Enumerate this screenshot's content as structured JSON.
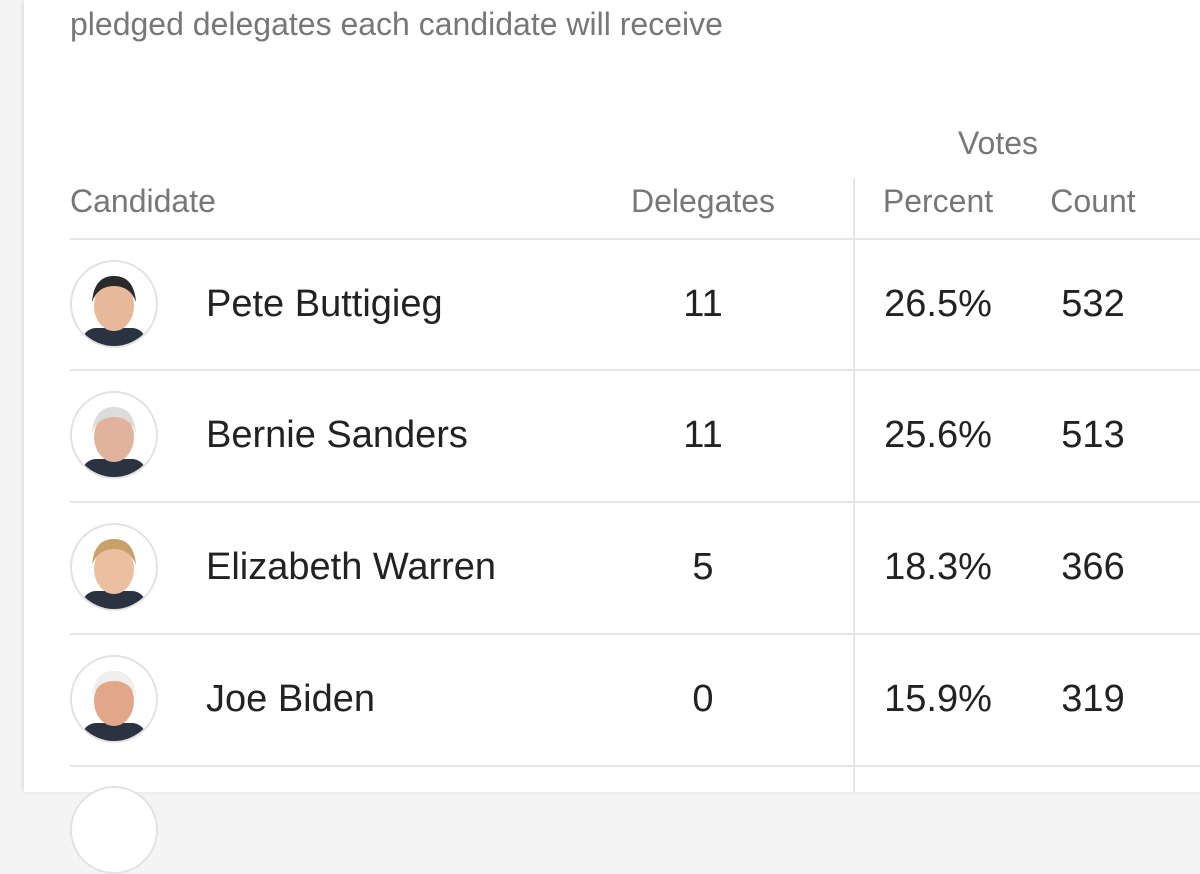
{
  "subtitle": "pledged delegates each candidate will receive",
  "table": {
    "group_header": "Votes",
    "columns": [
      "Candidate",
      "Delegates",
      "Percent",
      "Count"
    ],
    "rows": [
      [
        "Pete Buttigieg",
        "11",
        "26.5%",
        "532"
      ],
      [
        "Bernie Sanders",
        "11",
        "25.6%",
        "513"
      ],
      [
        "Elizabeth Warren",
        "5",
        "18.3%",
        "366"
      ],
      [
        "Joe Biden",
        "0",
        "15.9%",
        "319"
      ]
    ]
  }
}
